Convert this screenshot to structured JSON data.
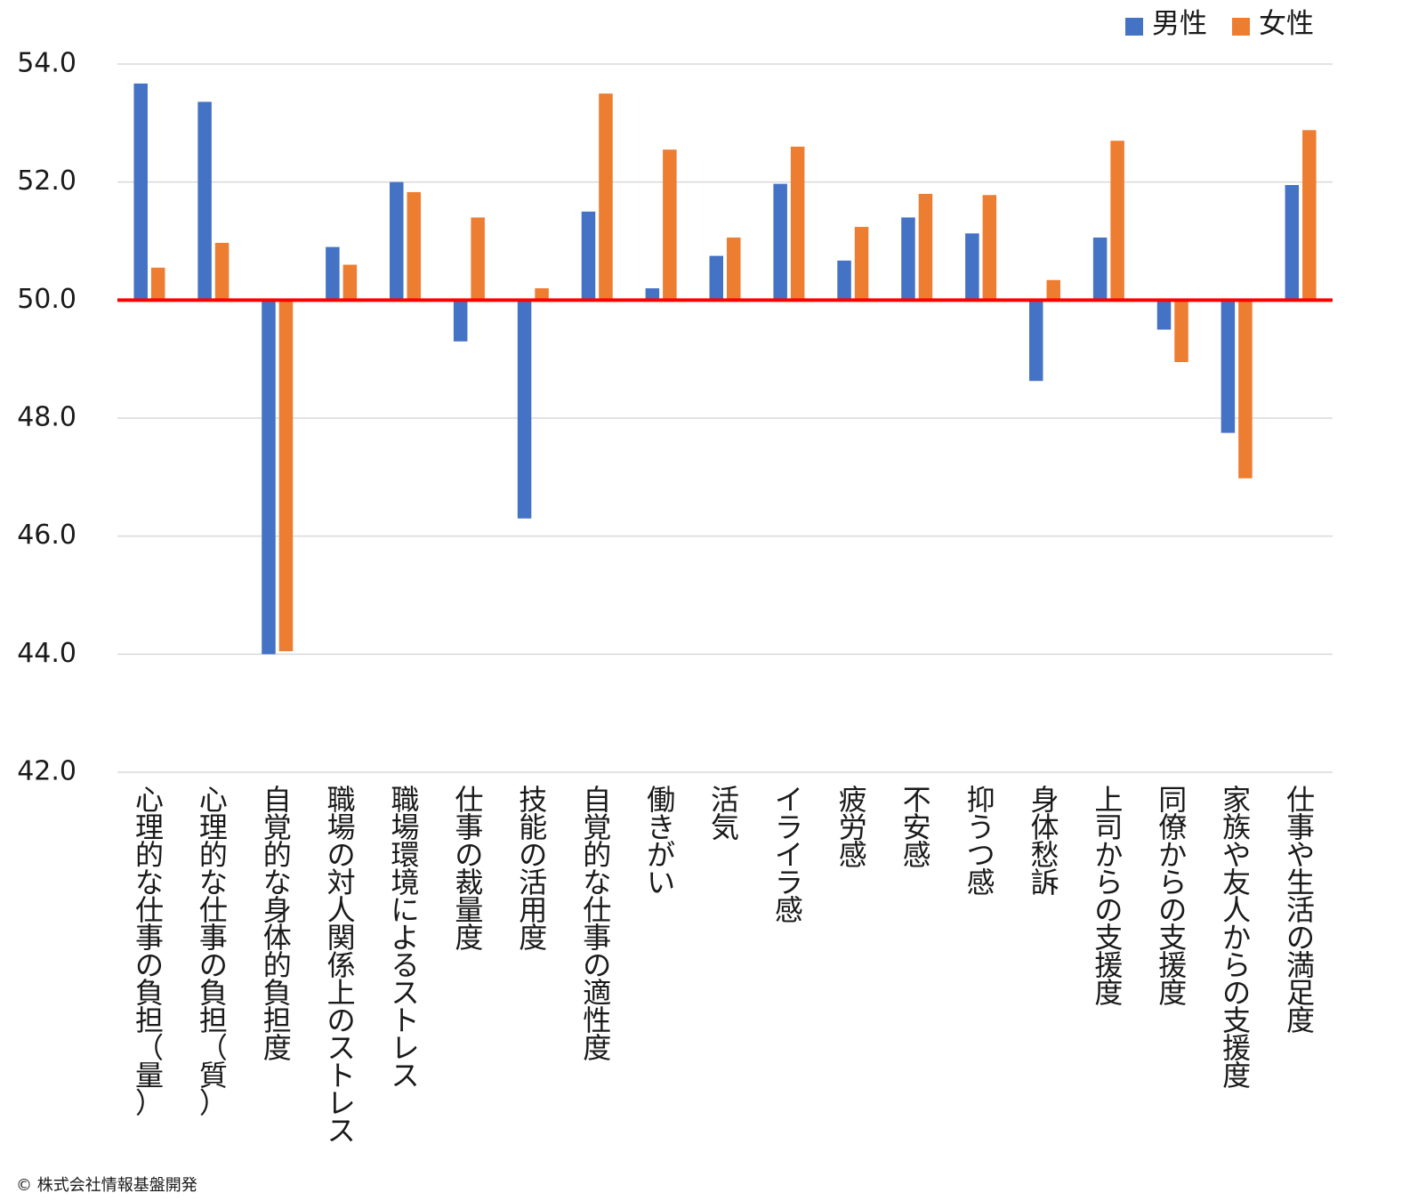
{
  "chart_data": {
    "type": "bar",
    "title": "",
    "xlabel": "",
    "ylabel": "",
    "ylim": [
      42,
      54
    ],
    "yticks": [
      42,
      44,
      46,
      48,
      50,
      52,
      54
    ],
    "ytick_labels": [
      "42.0",
      "44.0",
      "46.0",
      "48.0",
      "50.0",
      "52.0",
      "54.0"
    ],
    "baseline": 50,
    "baseline_color": "#ff0000",
    "grid": true,
    "legend_position": "top-right",
    "categories": [
      "心理的な仕事の負担（量）",
      "心理的な仕事の負担（質）",
      "自覚的な身体的負担度",
      "職場の対人関係上のストレス",
      "職場環境によるストレス",
      "仕事の裁量度",
      "技能の活用度",
      "自覚的な仕事の適性度",
      "働きがい",
      "活気",
      "イライラ感",
      "疲労感",
      "不安感",
      "抑うつ感",
      "身体愁訴",
      "上司からの支援度",
      "同僚からの支援度",
      "家族や友人からの支援度",
      "仕事や生活の満足度"
    ],
    "series": [
      {
        "name": "男性",
        "color": "#4472c4",
        "values": [
          53.67,
          53.36,
          44.0,
          50.9,
          52.0,
          49.3,
          46.3,
          51.5,
          50.2,
          50.75,
          51.97,
          50.67,
          51.4,
          51.13,
          48.63,
          51.06,
          49.5,
          47.75,
          51.95
        ]
      },
      {
        "name": "女性",
        "color": "#ed7d31",
        "values": [
          50.55,
          50.97,
          44.05,
          50.6,
          51.83,
          51.4,
          50.2,
          53.5,
          52.55,
          51.06,
          52.6,
          51.24,
          51.8,
          51.78,
          50.34,
          52.7,
          48.95,
          46.98,
          52.88
        ]
      }
    ]
  },
  "footer": {
    "copyright": "© 株式会社情報基盤開発"
  }
}
